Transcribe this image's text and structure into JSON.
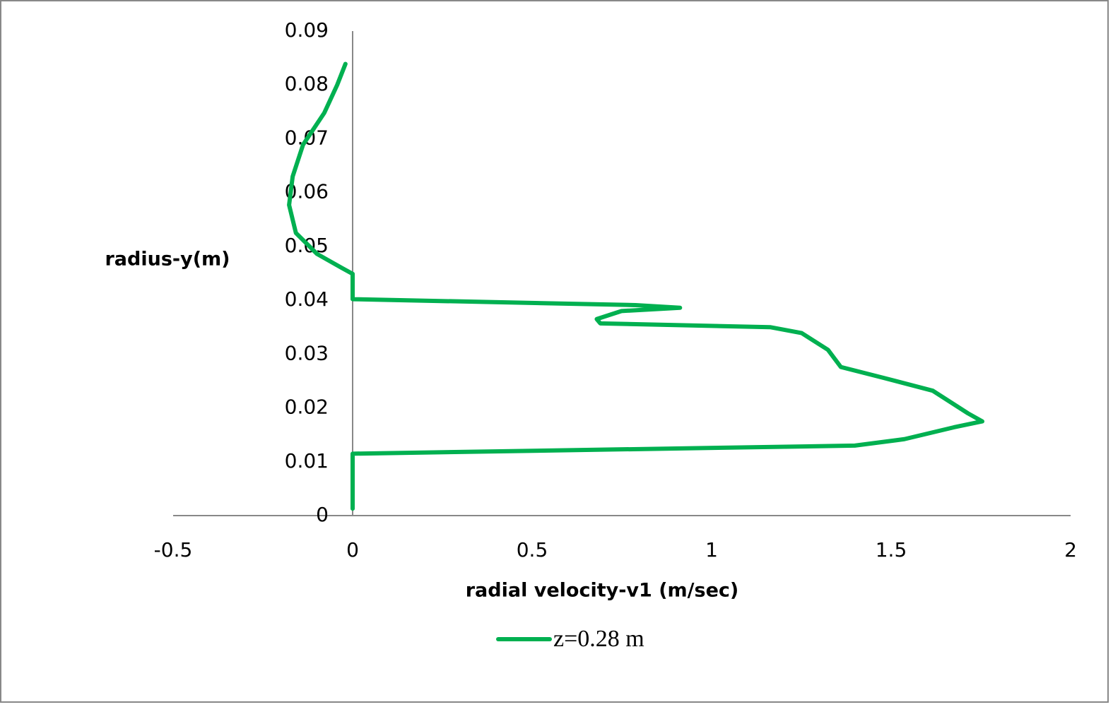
{
  "chart_data": {
    "type": "line",
    "x_label": "radial velocity-v1 (m/sec)",
    "y_label": "radius-y(m)",
    "x": [
      0,
      0,
      0,
      1.399,
      1.537,
      1.675,
      1.754,
      1.714,
      1.616,
      1.478,
      1.36,
      1.324,
      1.251,
      1.163,
      0.69,
      0.68,
      0.749,
      0.912,
      0.788,
      0,
      0,
      -0.03,
      -0.099,
      -0.158,
      -0.177,
      -0.167,
      -0.138,
      -0.079,
      -0.043,
      -0.02
    ],
    "series": [
      {
        "name": "z=0.28 m",
        "color": "#00b050",
        "values": [
          0.0013,
          0.0112,
          0.0115,
          0.013,
          0.0142,
          0.0164,
          0.0175,
          0.019,
          0.0232,
          0.0256,
          0.0276,
          0.0308,
          0.0339,
          0.035,
          0.0357,
          0.0365,
          0.038,
          0.0386,
          0.0391,
          0.0402,
          0.0449,
          0.046,
          0.0486,
          0.0525,
          0.0577,
          0.063,
          0.0689,
          0.0748,
          0.08,
          0.0839
        ]
      }
    ],
    "xlim": [
      -0.5,
      2
    ],
    "xticks": [
      -0.5,
      0,
      0.5,
      1,
      1.5,
      2
    ],
    "ylim": [
      0,
      0.09
    ],
    "yticks": [
      0,
      0.01,
      0.02,
      0.03,
      0.04,
      0.05,
      0.06,
      0.07,
      0.08,
      0.09
    ],
    "grid": false,
    "legend": "bottom"
  }
}
